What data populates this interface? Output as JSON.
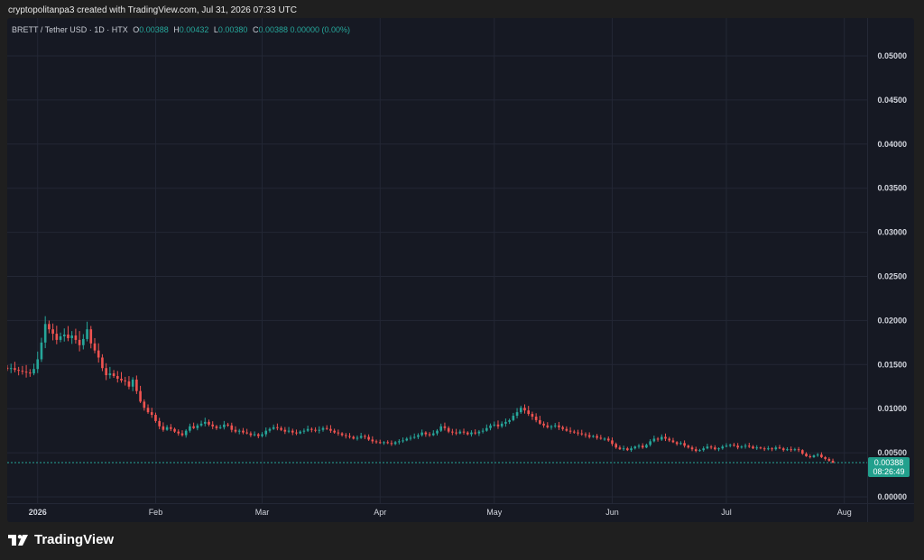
{
  "header": {
    "attribution": "cryptopolitanpa3 created with TradingView.com, Jul 31, 2026 07:33 UTC"
  },
  "legend": {
    "symbol": "BRETT / Tether USD · 1D · HTX",
    "o_label": "O",
    "o_value": "0.00388",
    "h_label": "H",
    "h_value": "0.00432",
    "l_label": "L",
    "l_value": "0.00380",
    "c_label": "C",
    "c_value": "0.00388 0.00000 (0.00%)"
  },
  "price_badge": {
    "price": "0.00388",
    "countdown": "08:26:49"
  },
  "footer": {
    "brand": "TradingView",
    "logo_icon": "tradingview-logo-icon"
  },
  "colors": {
    "up": "#26a69a",
    "down": "#ef5350",
    "background": "#161923",
    "grid": "#232735",
    "axis_text": "#d1d4dc"
  },
  "chart_data": {
    "type": "candlestick",
    "title": "BRETT / Tether USD · 1D · HTX",
    "xlabel": "",
    "ylabel": "",
    "ylim": [
      0,
      0.0515
    ],
    "y_ticks": [
      "0.05000",
      "0.04500",
      "0.04000",
      "0.03500",
      "0.03000",
      "0.02500",
      "0.02000",
      "0.01500",
      "0.01000",
      "0.00500",
      "0.00000"
    ],
    "y_tick_values": [
      0.05,
      0.045,
      0.04,
      0.035,
      0.03,
      0.025,
      0.02,
      0.015,
      0.01,
      0.005,
      0
    ],
    "x_ticks": [
      "2026",
      "Feb",
      "Mar",
      "Apr",
      "May",
      "Jun",
      "Jul",
      "Aug"
    ],
    "x_tick_dates": [
      "2026-01-01",
      "2026-02-01",
      "2026-03-01",
      "2026-04-01",
      "2026-05-01",
      "2026-06-01",
      "2026-07-01",
      "2026-08-01"
    ],
    "xlim": [
      "2025-12-24",
      "2026-08-07"
    ],
    "grid": true,
    "last_price": 0.00388,
    "series": [
      {
        "start_date": "2025-12-24",
        "interval": "1D",
        "close": [
          0.0145,
          0.0146,
          0.0144,
          0.0143,
          0.0142,
          0.0141,
          0.014,
          0.0145,
          0.0156,
          0.0175,
          0.0196,
          0.019,
          0.0185,
          0.0178,
          0.0182,
          0.0184,
          0.018,
          0.0183,
          0.0178,
          0.0172,
          0.0179,
          0.019,
          0.0174,
          0.0166,
          0.0158,
          0.0146,
          0.0138,
          0.014,
          0.0137,
          0.0134,
          0.0132,
          0.0131,
          0.0125,
          0.0133,
          0.012,
          0.0108,
          0.0101,
          0.0096,
          0.0093,
          0.0086,
          0.008,
          0.0076,
          0.0079,
          0.0077,
          0.0074,
          0.0072,
          0.007,
          0.0075,
          0.008,
          0.0078,
          0.0081,
          0.0083,
          0.0085,
          0.0082,
          0.008,
          0.0078,
          0.0079,
          0.0082,
          0.0081,
          0.0076,
          0.0074,
          0.0075,
          0.0073,
          0.0072,
          0.007,
          0.0071,
          0.0069,
          0.0071,
          0.0075,
          0.0077,
          0.0079,
          0.0078,
          0.0076,
          0.0074,
          0.0075,
          0.0073,
          0.0072,
          0.0074,
          0.0075,
          0.0077,
          0.0076,
          0.0075,
          0.0076,
          0.0078,
          0.0077,
          0.0075,
          0.0073,
          0.0072,
          0.007,
          0.0069,
          0.0068,
          0.0066,
          0.0067,
          0.0069,
          0.0068,
          0.0065,
          0.0063,
          0.0062,
          0.0061,
          0.0062,
          0.0061,
          0.006,
          0.0062,
          0.0063,
          0.0064,
          0.0066,
          0.0067,
          0.0068,
          0.007,
          0.0073,
          0.0071,
          0.007,
          0.0072,
          0.0075,
          0.008,
          0.0078,
          0.0074,
          0.0073,
          0.0072,
          0.0074,
          0.0073,
          0.0071,
          0.0073,
          0.0072,
          0.0074,
          0.0075,
          0.0078,
          0.0081,
          0.0082,
          0.008,
          0.0083,
          0.0085,
          0.0087,
          0.0092,
          0.0096,
          0.0101,
          0.0098,
          0.0094,
          0.0091,
          0.0087,
          0.0083,
          0.0081,
          0.0079,
          0.008,
          0.0081,
          0.0079,
          0.0077,
          0.0075,
          0.0074,
          0.0073,
          0.0072,
          0.0071,
          0.007,
          0.0068,
          0.0069,
          0.0067,
          0.0066,
          0.0066,
          0.0064,
          0.006,
          0.0056,
          0.0054,
          0.0055,
          0.0053,
          0.0055,
          0.0057,
          0.0058,
          0.0056,
          0.0059,
          0.0063,
          0.0066,
          0.0065,
          0.0068,
          0.0066,
          0.0064,
          0.0062,
          0.006,
          0.0061,
          0.0058,
          0.0056,
          0.0054,
          0.0052,
          0.0053,
          0.0055,
          0.0057,
          0.0056,
          0.0054,
          0.0055,
          0.0057,
          0.0058,
          0.0059,
          0.0058,
          0.0056,
          0.0057,
          0.0058,
          0.0057,
          0.0055,
          0.0056,
          0.0055,
          0.0054,
          0.0055,
          0.0054,
          0.0056,
          0.0055,
          0.0053,
          0.0054,
          0.0053,
          0.0054,
          0.0053,
          0.0049,
          0.0046,
          0.0045,
          0.0047,
          0.0048,
          0.0045,
          0.0043,
          0.0041,
          0.00388
        ]
      }
    ]
  }
}
